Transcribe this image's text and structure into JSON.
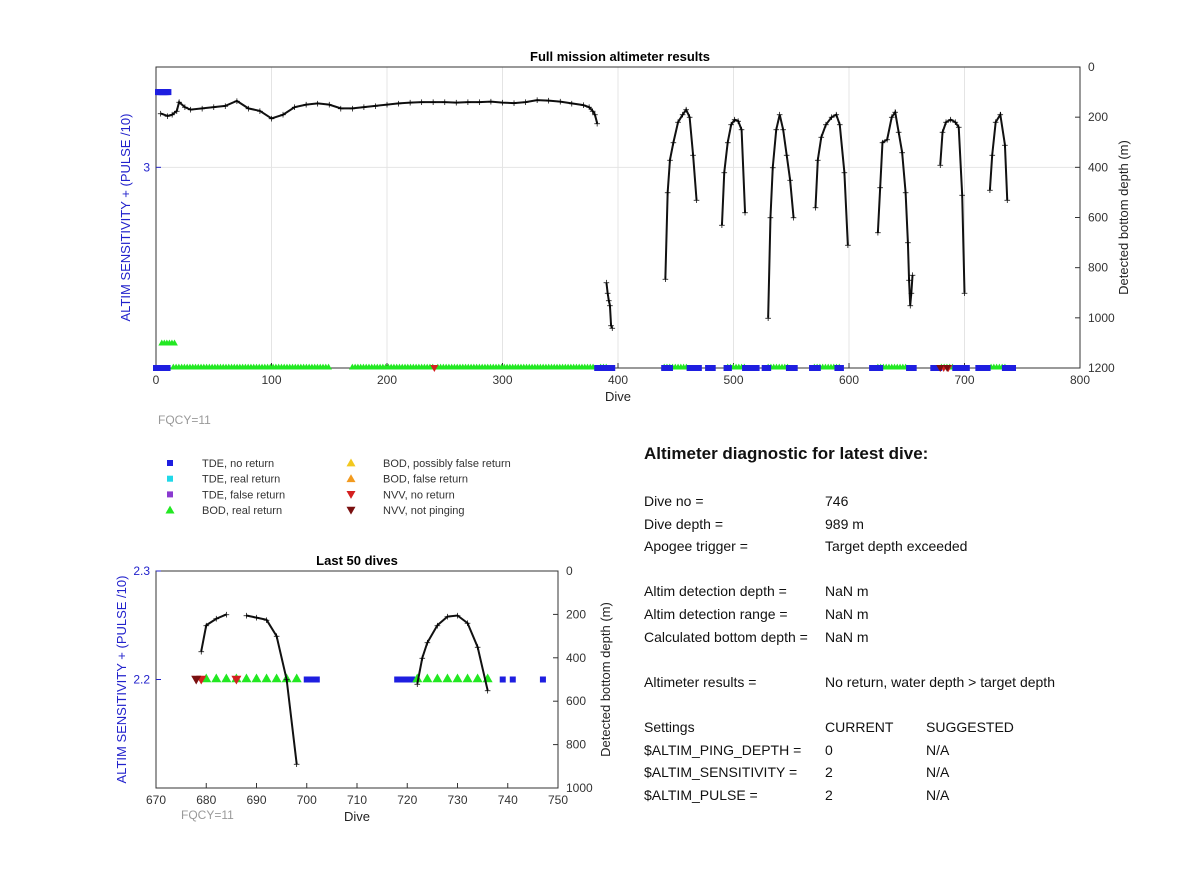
{
  "chart_data": [
    {
      "type": "scatter",
      "title": "Full mission altimeter results",
      "xlabel": "Dive",
      "ylabel_left": "ALTIM SENSITIVITY + (PULSE /10)",
      "ylabel_right": "Detected bottom depth (m)",
      "xlim": [
        0,
        800
      ],
      "x_ticks": [
        0,
        100,
        200,
        300,
        400,
        500,
        600,
        700,
        800
      ],
      "ylim_left": [
        2.2,
        3.4
      ],
      "y_ticks_left": [
        3
      ],
      "ylim_right_reversed": [
        1200,
        0
      ],
      "y_ticks_right": [
        0,
        200,
        400,
        600,
        800,
        1000,
        1200
      ],
      "grid": true,
      "annotation": "FQCY=11",
      "depth_series": [
        {
          "name": "",
          "x": [
            4,
            10,
            14,
            18,
            20,
            25,
            30,
            40,
            50,
            60,
            70,
            80,
            90,
            100,
            110,
            120,
            130,
            140,
            150,
            160,
            170,
            180,
            190,
            200,
            210,
            220,
            230,
            240,
            250,
            260,
            270,
            280,
            290,
            300,
            310,
            320,
            330,
            340,
            350,
            360,
            370,
            375,
            378,
            380,
            382
          ],
          "y": [
            185,
            195,
            190,
            175,
            140,
            160,
            170,
            165,
            160,
            155,
            135,
            165,
            175,
            205,
            190,
            160,
            150,
            145,
            150,
            165,
            165,
            160,
            155,
            150,
            145,
            142,
            140,
            140,
            140,
            142,
            140,
            140,
            138,
            142,
            144,
            140,
            132,
            134,
            138,
            145,
            152,
            160,
            175,
            190,
            225
          ]
        },
        {
          "name": "",
          "x": [
            390,
            391,
            392,
            393,
            394,
            395
          ],
          "y": [
            860,
            900,
            930,
            950,
            1030,
            1040
          ]
        },
        {
          "name": "",
          "x": [
            441,
            443,
            445,
            448,
            452,
            456,
            459,
            462,
            465,
            468
          ],
          "y": [
            845,
            500,
            370,
            300,
            220,
            190,
            170,
            200,
            350,
            530
          ]
        },
        {
          "name": "",
          "x": [
            490,
            492,
            495,
            498,
            501,
            504,
            507,
            510
          ],
          "y": [
            630,
            420,
            300,
            230,
            210,
            215,
            250,
            580
          ]
        },
        {
          "name": "",
          "x": [
            530,
            532,
            534,
            537,
            540,
            543,
            546,
            549,
            552
          ],
          "y": [
            1000,
            600,
            400,
            250,
            190,
            250,
            350,
            450,
            600
          ]
        },
        {
          "name": "",
          "x": [
            571,
            573,
            576,
            580,
            585,
            589,
            592,
            596,
            599
          ],
          "y": [
            560,
            370,
            280,
            230,
            200,
            190,
            230,
            420,
            710
          ]
        },
        {
          "name": "",
          "x": [
            625,
            627,
            629,
            633,
            637,
            640,
            643,
            646,
            649,
            651,
            652,
            653,
            654,
            655
          ],
          "y": [
            660,
            480,
            300,
            290,
            200,
            180,
            260,
            340,
            500,
            700,
            850,
            950,
            900,
            830
          ]
        },
        {
          "name": "",
          "x": [
            679,
            681,
            684,
            688,
            692,
            695,
            698,
            700
          ],
          "y": [
            390,
            260,
            220,
            210,
            220,
            240,
            510,
            900
          ]
        },
        {
          "name": "",
          "x": [
            722,
            724,
            727,
            731,
            735,
            737
          ],
          "y": [
            490,
            350,
            220,
            190,
            310,
            530
          ]
        }
      ],
      "marker_spans": {
        "tde_no_return_x": [
          [
            0,
            10
          ],
          [
            382,
            395
          ],
          [
            440,
            445
          ],
          [
            462,
            470
          ],
          [
            478,
            482
          ],
          [
            494,
            496
          ],
          [
            510,
            520
          ],
          [
            527,
            530
          ],
          [
            548,
            553
          ],
          [
            568,
            573
          ],
          [
            590,
            593
          ],
          [
            620,
            627
          ],
          [
            652,
            656
          ],
          [
            673,
            678
          ],
          [
            692,
            702
          ],
          [
            712,
            720
          ],
          [
            735,
            742
          ]
        ],
        "tde_no_return_early_y": 3.3,
        "bod_real_return_early_x": [
          5,
          18
        ],
        "bod_real_return_early_y": 2.3,
        "bod_real_return_x": [
          [
            15,
            150
          ],
          [
            170,
            240
          ],
          [
            244,
            380
          ],
          [
            385,
            390
          ],
          [
            440,
            460
          ],
          [
            495,
            510
          ],
          [
            530,
            548
          ],
          [
            570,
            593
          ],
          [
            625,
            650
          ],
          [
            680,
            690
          ],
          [
            723,
            735
          ]
        ],
        "nvv_no_return_x": [
          241,
          682,
          686
        ],
        "nvv_not_pinging_x": [
          679,
          685
        ],
        "y": 2.2
      }
    },
    {
      "type": "scatter",
      "title": "Last 50 dives",
      "xlabel": "Dive",
      "ylabel_left": "ALTIM SENSITIVITY + (PULSE /10)",
      "ylabel_right": "Detected bottom depth (m)",
      "xlim": [
        670,
        750
      ],
      "x_ticks": [
        670,
        680,
        690,
        700,
        710,
        720,
        730,
        740,
        750
      ],
      "ylim_left": [
        2.1,
        2.3
      ],
      "y_ticks_left": [
        2.2,
        2.3
      ],
      "ylim_right_reversed": [
        1000,
        0
      ],
      "y_ticks_right": [
        0,
        200,
        400,
        600,
        800,
        1000
      ],
      "grid": false,
      "annotation": "FQCY=11",
      "depth_series": [
        {
          "name": "",
          "x": [
            679,
            680,
            682,
            684
          ],
          "y": [
            370,
            250,
            220,
            200
          ]
        },
        {
          "name": "",
          "x": [
            688,
            690,
            692,
            694,
            696,
            698
          ],
          "y": [
            205,
            215,
            225,
            300,
            500,
            890
          ]
        },
        {
          "name": "",
          "x": [
            722,
            723,
            724,
            726,
            728,
            730,
            732,
            734,
            736
          ],
          "y": [
            520,
            400,
            330,
            250,
            210,
            205,
            240,
            350,
            550
          ]
        }
      ],
      "markers": {
        "tde_no_return_x": [
          700,
          701,
          702,
          718,
          719,
          720,
          721,
          739,
          741,
          747
        ],
        "bod_real_return_x": [
          680,
          682,
          684,
          686,
          688,
          690,
          692,
          694,
          696,
          698,
          722,
          724,
          726,
          728,
          730,
          732,
          734,
          736
        ],
        "nvv_no_return_x": [
          679,
          686
        ],
        "nvv_not_pinging_x": [
          678
        ],
        "y": 2.2
      }
    }
  ],
  "legend": {
    "items": [
      {
        "label": "TDE, no return",
        "marker": "square",
        "color": "#1e1ee0"
      },
      {
        "label": "TDE, real return",
        "marker": "square",
        "color": "#20d8e8"
      },
      {
        "label": "TDE, false return",
        "marker": "square",
        "color": "#8a3ad0"
      },
      {
        "label": "BOD, real return",
        "marker": "triangle-up",
        "color": "#22e822"
      },
      {
        "label": "BOD, possibly false return",
        "marker": "triangle-up",
        "color": "#f2c81e"
      },
      {
        "label": "BOD, false return",
        "marker": "triangle-up",
        "color": "#f29a1e"
      },
      {
        "label": "NVV, no return",
        "marker": "triangle-down",
        "color": "#d42020"
      },
      {
        "label": "NVV, not pinging",
        "marker": "triangle-down",
        "color": "#7a1010"
      }
    ]
  },
  "diagnostic": {
    "title": "Altimeter diagnostic for latest dive:",
    "dive_no_label": "Dive no =",
    "dive_no": "746",
    "dive_depth_label": "Dive depth =",
    "dive_depth": "989 m",
    "apogee_label": "Apogee trigger =",
    "apogee": "Target depth exceeded",
    "det_depth_label": "Altim detection depth =",
    "det_depth": "NaN m",
    "det_range_label": "Altim detection range =",
    "det_range": "NaN m",
    "calc_bottom_label": "Calculated bottom depth =",
    "calc_bottom": "NaN m",
    "results_label": "Altimeter results =",
    "results": "No return, water depth > target depth",
    "settings_label": "Settings",
    "current_label": "CURRENT",
    "suggested_label": "SUGGESTED",
    "ping_depth_label": "$ALTIM_PING_DEPTH =",
    "ping_depth_cur": "0",
    "ping_depth_sug": "N/A",
    "sensitivity_label": "$ALTIM_SENSITIVITY =",
    "sensitivity_cur": "2",
    "sensitivity_sug": "N/A",
    "pulse_label": "$ALTIM_PULSE =",
    "pulse_cur": "2",
    "pulse_sug": "N/A"
  }
}
